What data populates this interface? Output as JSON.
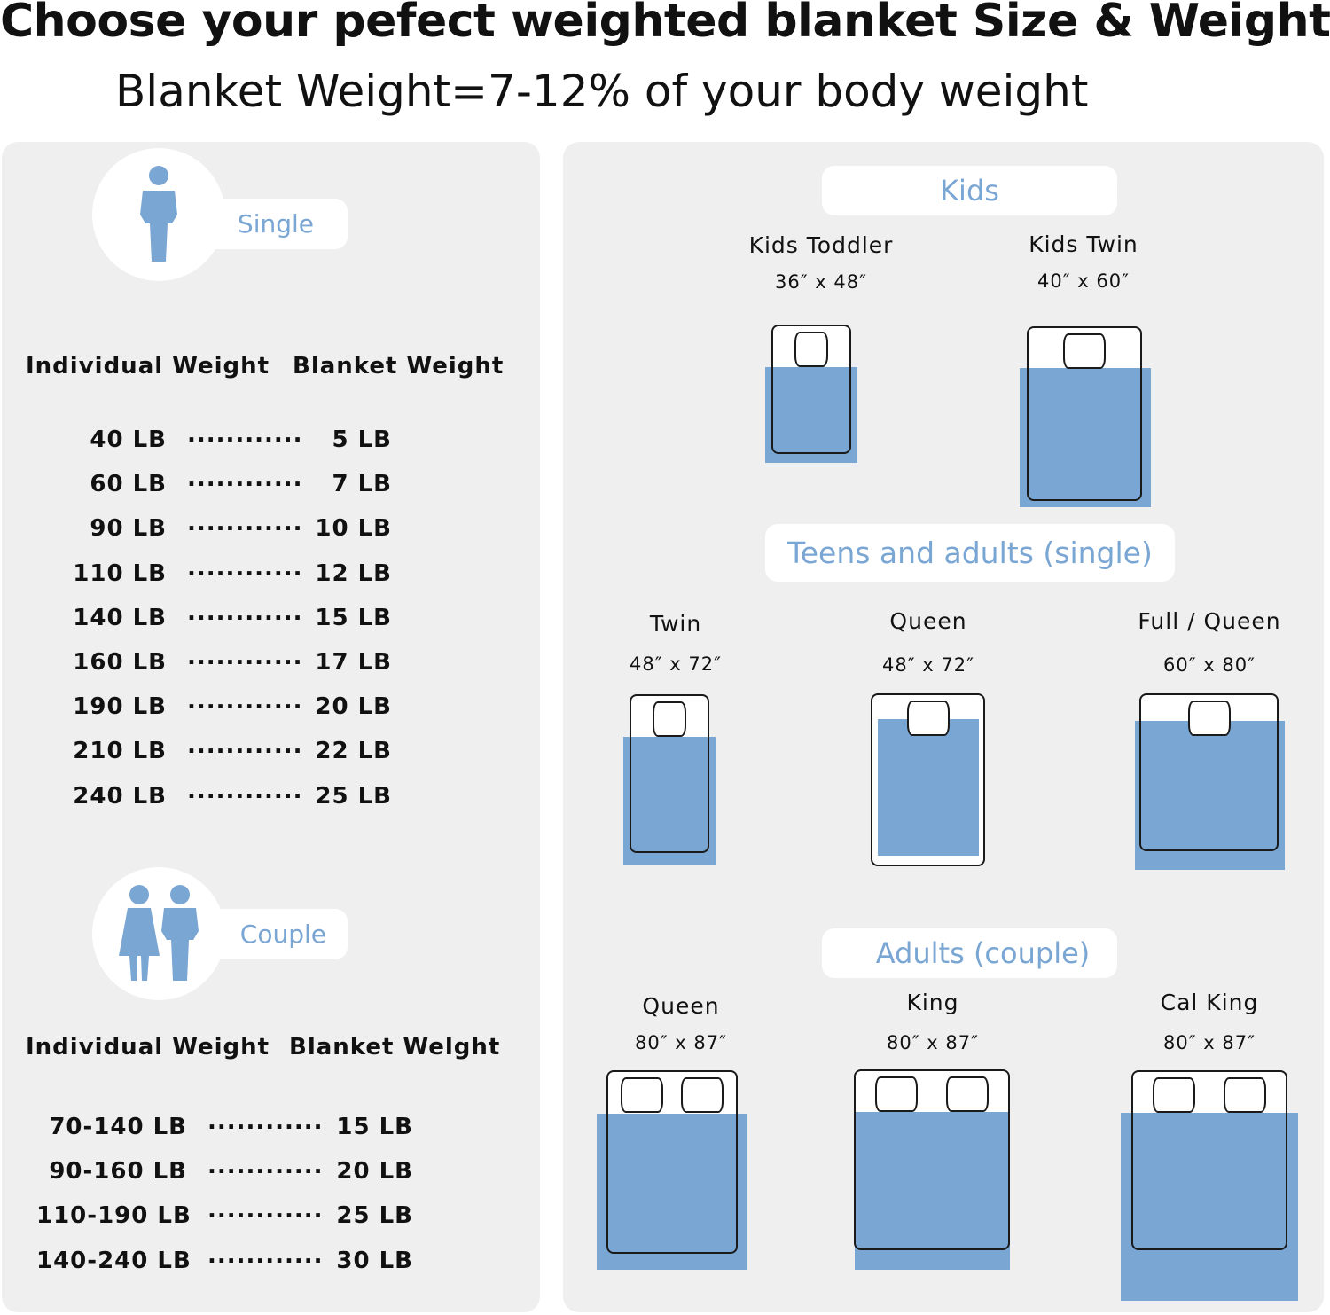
{
  "header": {
    "title": "Choose your pefect weighted blanket Size & Weight",
    "subtitle": "Blanket Weight=7-12% of your body weight"
  },
  "colors": {
    "accent_blue": "#7aa6d4",
    "panel": "#efefef"
  },
  "single": {
    "label": "Single",
    "icon": "person-icon",
    "col_individual": "Individual Weight",
    "col_blanket": "Blanket Weight",
    "dots": "............",
    "rows": [
      {
        "individual": "40 LB",
        "blanket": "5 LB"
      },
      {
        "individual": "60 LB",
        "blanket": "7 LB"
      },
      {
        "individual": "90 LB",
        "blanket": "10 LB"
      },
      {
        "individual": "110 LB",
        "blanket": "12 LB"
      },
      {
        "individual": "140 LB",
        "blanket": "15 LB"
      },
      {
        "individual": "160 LB",
        "blanket": "17 LB"
      },
      {
        "individual": "190 LB",
        "blanket": "20 LB"
      },
      {
        "individual": "210 LB",
        "blanket": "22 LB"
      },
      {
        "individual": "240 LB",
        "blanket": "25 LB"
      }
    ]
  },
  "couple": {
    "label": "Couple",
    "icon": "couple-icon",
    "col_individual": "Individual Weight",
    "col_blanket": "Blanket Welght",
    "dots": "............",
    "rows": [
      {
        "individual": "70-140 LB",
        "blanket": "15 LB"
      },
      {
        "individual": "90-160 LB",
        "blanket": "20 LB"
      },
      {
        "individual": "110-190 LB",
        "blanket": "25 LB"
      },
      {
        "individual": "140-240 LB",
        "blanket": "30 LB"
      }
    ]
  },
  "categories": {
    "kids": "Kids",
    "teens": "Teens and adults (single)",
    "adults": "Adults (couple)"
  },
  "beds": [
    {
      "name": "Kids Toddler",
      "size": "36″  x 48″",
      "pillows": 1
    },
    {
      "name": "Kids Twin",
      "size": "40″  x 60″",
      "pillows": 1
    },
    {
      "name": "Twin",
      "size": "48″  x 72″",
      "pillows": 1
    },
    {
      "name": "Queen",
      "size": "48″  x 72″",
      "pillows": 1
    },
    {
      "name": "Full / Queen",
      "size": "60″  x 80″",
      "pillows": 1
    },
    {
      "name": "Queen",
      "size": "80″  x 87″",
      "pillows": 2
    },
    {
      "name": "King",
      "size": "80″  x 87″",
      "pillows": 2
    },
    {
      "name": "Cal King",
      "size": "80″  x 87″",
      "pillows": 2
    }
  ]
}
